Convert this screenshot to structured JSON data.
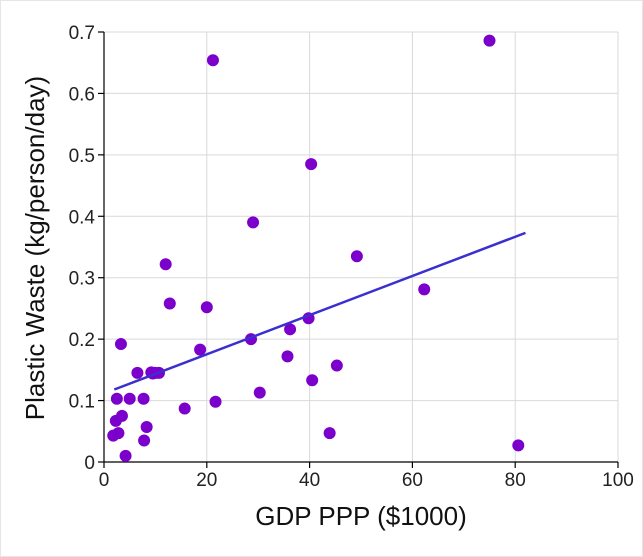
{
  "chart_data": {
    "type": "scatter",
    "title": "",
    "xlabel": "GDP PPP ($1000)",
    "ylabel": "Plastic Waste (kg/person/day)",
    "xlim": [
      0,
      100
    ],
    "ylim": [
      0,
      0.7
    ],
    "x_ticks": [
      0,
      20,
      40,
      60,
      80,
      100
    ],
    "y_ticks": [
      0,
      0.1,
      0.2,
      0.3,
      0.4,
      0.5,
      0.6,
      0.7
    ],
    "x_tick_labels": [
      "0",
      "20",
      "40",
      "60",
      "80",
      "100"
    ],
    "y_tick_labels": [
      "0",
      "0.1",
      "0.2",
      "0.3",
      "0.4",
      "0.5",
      "0.6",
      "0.7"
    ],
    "grid": true,
    "point_color": "#7b00cc",
    "line_color": "#3b2fd0",
    "trendline": {
      "x": [
        2.0,
        82.0
      ],
      "y": [
        0.118,
        0.373
      ]
    },
    "points": [
      {
        "x": 1.8,
        "y": 0.043
      },
      {
        "x": 2.3,
        "y": 0.067
      },
      {
        "x": 2.5,
        "y": 0.103
      },
      {
        "x": 2.8,
        "y": 0.047
      },
      {
        "x": 3.3,
        "y": 0.192
      },
      {
        "x": 3.5,
        "y": 0.075
      },
      {
        "x": 4.2,
        "y": 0.01
      },
      {
        "x": 5.0,
        "y": 0.103
      },
      {
        "x": 6.5,
        "y": 0.145
      },
      {
        "x": 7.7,
        "y": 0.103
      },
      {
        "x": 7.8,
        "y": 0.035
      },
      {
        "x": 8.3,
        "y": 0.057
      },
      {
        "x": 9.2,
        "y": 0.146
      },
      {
        "x": 9.5,
        "y": 0.144
      },
      {
        "x": 10.0,
        "y": 0.145
      },
      {
        "x": 10.7,
        "y": 0.145
      },
      {
        "x": 12.0,
        "y": 0.322
      },
      {
        "x": 12.8,
        "y": 0.258
      },
      {
        "x": 15.7,
        "y": 0.087
      },
      {
        "x": 18.7,
        "y": 0.183
      },
      {
        "x": 20.0,
        "y": 0.252
      },
      {
        "x": 21.2,
        "y": 0.654
      },
      {
        "x": 21.7,
        "y": 0.098
      },
      {
        "x": 28.6,
        "y": 0.2
      },
      {
        "x": 29.0,
        "y": 0.39
      },
      {
        "x": 30.3,
        "y": 0.113
      },
      {
        "x": 35.7,
        "y": 0.172
      },
      {
        "x": 36.2,
        "y": 0.216
      },
      {
        "x": 39.8,
        "y": 0.234
      },
      {
        "x": 40.3,
        "y": 0.485
      },
      {
        "x": 40.5,
        "y": 0.133
      },
      {
        "x": 43.9,
        "y": 0.047
      },
      {
        "x": 45.3,
        "y": 0.157
      },
      {
        "x": 49.2,
        "y": 0.335
      },
      {
        "x": 62.3,
        "y": 0.281
      },
      {
        "x": 75.0,
        "y": 0.686
      },
      {
        "x": 80.6,
        "y": 0.027
      }
    ]
  }
}
